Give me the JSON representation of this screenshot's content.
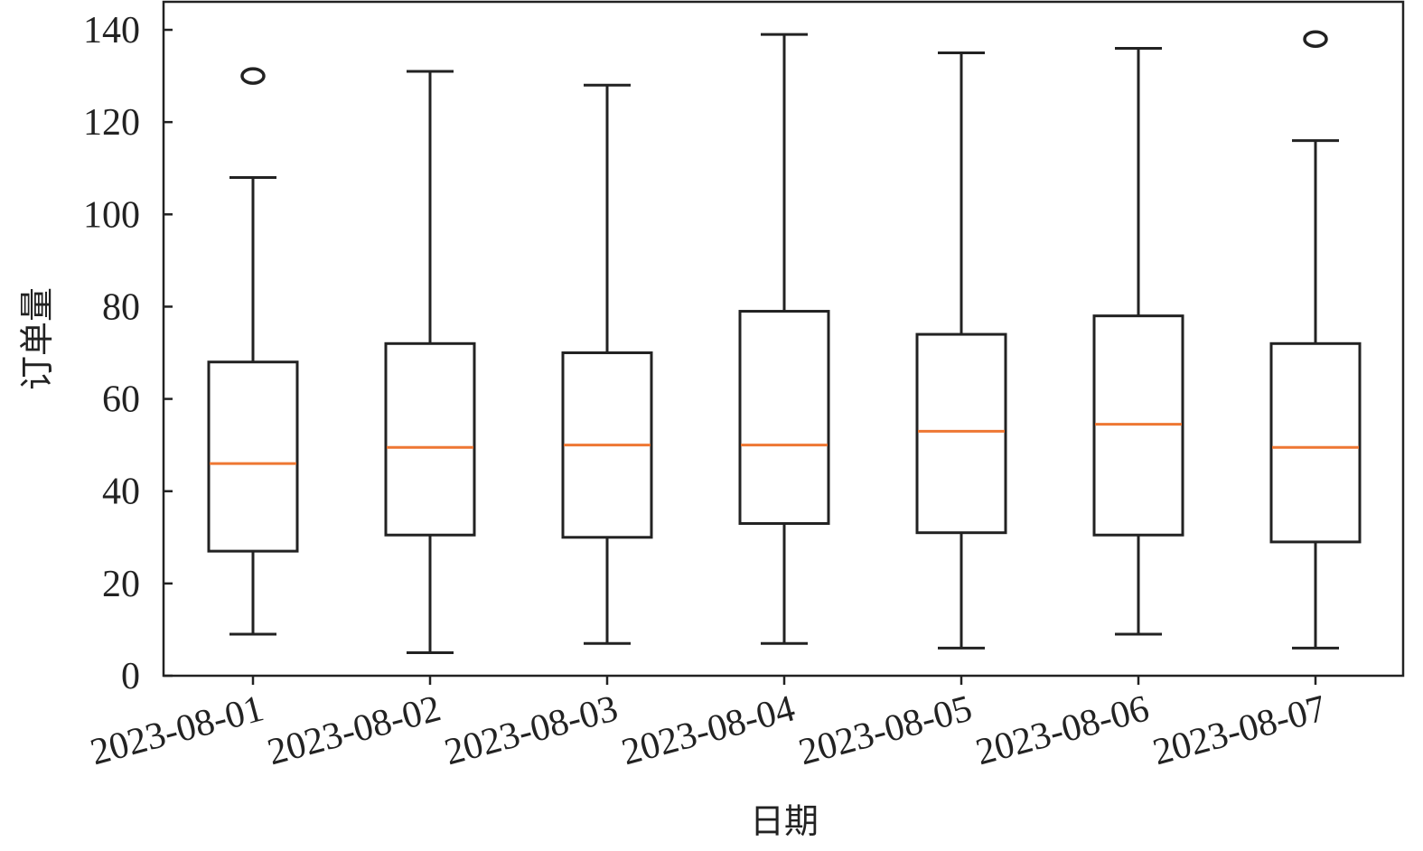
{
  "chart_data": {
    "type": "box",
    "title": "",
    "xlabel": "日期",
    "ylabel": "订单量",
    "ylim": [
      0,
      146
    ],
    "y_ticks": [
      0,
      20,
      40,
      60,
      80,
      100,
      120,
      140
    ],
    "y_tick_labels": [
      "0",
      "20",
      "40",
      "60",
      "80",
      "100",
      "120",
      "140"
    ],
    "categories": [
      "2023-08-01",
      "2023-08-02",
      "2023-08-03",
      "2023-08-04",
      "2023-08-05",
      "2023-08-06",
      "2023-08-07"
    ],
    "boxes": [
      {
        "category": "2023-08-01",
        "whisker_low": 9,
        "q1": 27,
        "median": 46,
        "q3": 68,
        "whisker_high": 108,
        "outliers": [
          130
        ]
      },
      {
        "category": "2023-08-02",
        "whisker_low": 5,
        "q1": 30.5,
        "median": 49.5,
        "q3": 72,
        "whisker_high": 131,
        "outliers": []
      },
      {
        "category": "2023-08-03",
        "whisker_low": 7,
        "q1": 30,
        "median": 50,
        "q3": 70,
        "whisker_high": 128,
        "outliers": []
      },
      {
        "category": "2023-08-04",
        "whisker_low": 7,
        "q1": 33,
        "median": 50,
        "q3": 79,
        "whisker_high": 139,
        "outliers": []
      },
      {
        "category": "2023-08-05",
        "whisker_low": 6,
        "q1": 31,
        "median": 53,
        "q3": 74,
        "whisker_high": 135,
        "outliers": []
      },
      {
        "category": "2023-08-06",
        "whisker_low": 9,
        "q1": 30.5,
        "median": 54.5,
        "q3": 78,
        "whisker_high": 136,
        "outliers": []
      },
      {
        "category": "2023-08-07",
        "whisker_low": 6,
        "q1": 29,
        "median": 49.5,
        "q3": 72,
        "whisker_high": 116,
        "outliers": [
          138
        ]
      }
    ],
    "grid": false,
    "legend": "none",
    "colors": {
      "box": "#222222",
      "median": "#ee7733",
      "axis": "#222222"
    }
  }
}
